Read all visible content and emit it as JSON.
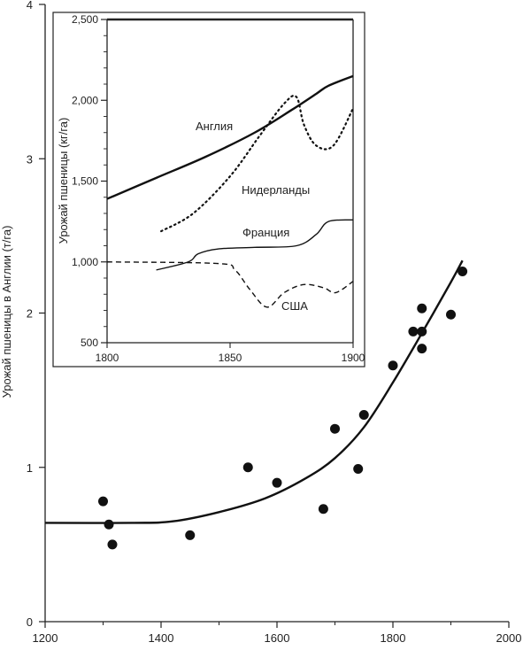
{
  "chart_data": [
    {
      "type": "scatter",
      "ylabel": "Урожай пшеницы в Англии (т/га)",
      "xlim": [
        1200,
        2000
      ],
      "ylim": [
        0,
        4
      ],
      "xticks": [
        1200,
        1400,
        1600,
        1800,
        2000
      ],
      "xtick_labels": [
        "1200",
        "1400",
        "1600",
        "1800",
        "2000"
      ],
      "yticks": [
        0,
        1,
        2,
        3,
        4
      ],
      "ytick_labels": [
        "0",
        "1",
        "2",
        "3",
        "4"
      ],
      "grid": false,
      "points": [
        {
          "x": 1300,
          "y": 0.78
        },
        {
          "x": 1310,
          "y": 0.63
        },
        {
          "x": 1316,
          "y": 0.5
        },
        {
          "x": 1450,
          "y": 0.56
        },
        {
          "x": 1550,
          "y": 1.0
        },
        {
          "x": 1600,
          "y": 0.9
        },
        {
          "x": 1680,
          "y": 0.73
        },
        {
          "x": 1700,
          "y": 1.25
        },
        {
          "x": 1740,
          "y": 0.99
        },
        {
          "x": 1750,
          "y": 1.34
        },
        {
          "x": 1800,
          "y": 1.66
        },
        {
          "x": 1835,
          "y": 1.88
        },
        {
          "x": 1850,
          "y": 2.03
        },
        {
          "x": 1850,
          "y": 1.88
        },
        {
          "x": 1850,
          "y": 1.77
        },
        {
          "x": 1900,
          "y": 1.99
        },
        {
          "x": 1920,
          "y": 2.27
        }
      ],
      "trend": [
        {
          "x": 1200,
          "y": 0.64
        },
        {
          "x": 1350,
          "y": 0.64
        },
        {
          "x": 1420,
          "y": 0.65
        },
        {
          "x": 1500,
          "y": 0.71
        },
        {
          "x": 1580,
          "y": 0.8
        },
        {
          "x": 1650,
          "y": 0.93
        },
        {
          "x": 1700,
          "y": 1.06
        },
        {
          "x": 1750,
          "y": 1.26
        },
        {
          "x": 1800,
          "y": 1.55
        },
        {
          "x": 1850,
          "y": 1.87
        },
        {
          "x": 1900,
          "y": 2.2
        },
        {
          "x": 1920,
          "y": 2.34
        }
      ]
    },
    {
      "type": "line",
      "ylabel": "Урожай пшеницы (кг/га)",
      "xlim": [
        1800,
        1900
      ],
      "ylim": [
        500,
        2500
      ],
      "xticks": [
        1800,
        1850,
        1900
      ],
      "xtick_labels": [
        "1800",
        "1850",
        "1900"
      ],
      "yticks": [
        500,
        1000,
        1500,
        2000,
        2500
      ],
      "ytick_labels": [
        "500",
        "1,000",
        "1,500",
        "2,000",
        "2,500"
      ],
      "grid": false,
      "series": [
        {
          "name": "Англия",
          "style": "solid-thick",
          "x": [
            1800,
            1820,
            1840,
            1860,
            1875,
            1885,
            1890,
            1900
          ],
          "y": [
            1390,
            1520,
            1650,
            1800,
            1940,
            2040,
            2090,
            2150
          ]
        },
        {
          "name": "Нидерланды",
          "style": "dotted",
          "x": [
            1822,
            1835,
            1850,
            1862,
            1872,
            1877,
            1880,
            1885,
            1892,
            1900
          ],
          "y": [
            1190,
            1300,
            1530,
            1780,
            1980,
            2020,
            1850,
            1720,
            1720,
            1950
          ]
        },
        {
          "name": "Франция",
          "style": "solid-thin",
          "x": [
            1820,
            1833,
            1837,
            1845,
            1860,
            1877,
            1885,
            1890,
            1900
          ],
          "y": [
            950,
            1000,
            1050,
            1080,
            1090,
            1100,
            1170,
            1250,
            1260
          ]
        },
        {
          "name": "США",
          "style": "dashed",
          "x": [
            1800,
            1845,
            1852,
            1858,
            1865,
            1872,
            1880,
            1888,
            1893,
            1900
          ],
          "y": [
            1000,
            990,
            950,
            830,
            720,
            810,
            860,
            840,
            810,
            880
          ]
        }
      ]
    }
  ]
}
